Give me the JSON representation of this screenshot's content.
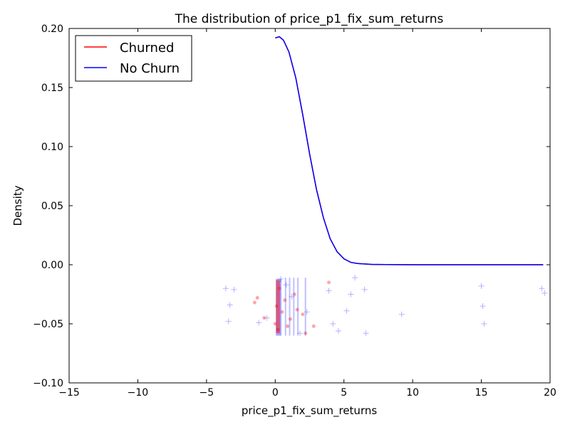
{
  "chart_data": {
    "type": "line",
    "title": "The distribution of price_p1_fix_sum_returns",
    "xlabel": "price_p1_fix_sum_returns",
    "ylabel": "Density",
    "xlim": [
      -15,
      20
    ],
    "ylim": [
      -0.1,
      0.2
    ],
    "xticks": [
      -15,
      -10,
      -5,
      0,
      5,
      10,
      15,
      20
    ],
    "xtick_labels": [
      "−15",
      "−10",
      "−5",
      "0",
      "5",
      "10",
      "15",
      "20"
    ],
    "yticks": [
      -0.1,
      -0.05,
      0.0,
      0.05,
      0.1,
      0.15,
      0.2
    ],
    "ytick_labels": [
      "−0.10",
      "−0.05",
      "0.00",
      "0.05",
      "0.10",
      "0.15",
      "0.20"
    ],
    "legend_position": "top-left",
    "grid": false,
    "series": [
      {
        "name": "Churned",
        "color": "#ff0000",
        "x": [
          0.0,
          0.3,
          0.6,
          1.0,
          1.5,
          2.0,
          2.5,
          3.0,
          3.5,
          4.0,
          4.5,
          5.0,
          5.5,
          6.0,
          7.0,
          8.0,
          10.0,
          12.0,
          15.0,
          17.0,
          19.5
        ],
        "y": [
          0.192,
          0.193,
          0.19,
          0.18,
          0.158,
          0.127,
          0.094,
          0.064,
          0.04,
          0.022,
          0.011,
          0.005,
          0.002,
          0.001,
          0.0003,
          0.0001,
          0.0,
          0.0,
          0.0,
          0.0,
          0.0
        ]
      },
      {
        "name": "No Churn",
        "color": "#0000ff",
        "x": [
          0.0,
          0.3,
          0.6,
          1.0,
          1.5,
          2.0,
          2.5,
          3.0,
          3.5,
          4.0,
          4.5,
          5.0,
          5.5,
          6.0,
          7.0,
          8.0,
          10.0,
          12.0,
          15.0,
          17.0,
          19.5
        ],
        "y": [
          0.192,
          0.193,
          0.19,
          0.18,
          0.158,
          0.127,
          0.094,
          0.064,
          0.04,
          0.022,
          0.011,
          0.005,
          0.002,
          0.001,
          0.0003,
          0.0001,
          0.0,
          0.0,
          0.0,
          0.0,
          0.0
        ]
      }
    ],
    "rug_points": {
      "churned": {
        "marker": "circle",
        "color": "#ff0000",
        "x": [
          -1.5,
          -1.3,
          -0.8,
          0.0,
          0.1,
          0.2,
          0.3,
          0.5,
          0.7,
          0.9,
          1.1,
          1.4,
          1.6,
          2.0,
          2.2,
          2.8,
          3.9
        ],
        "y": [
          -0.032,
          -0.028,
          -0.045,
          -0.05,
          -0.035,
          -0.055,
          -0.02,
          -0.04,
          -0.03,
          -0.052,
          -0.046,
          -0.025,
          -0.038,
          -0.042,
          -0.058,
          -0.052,
          -0.015
        ]
      },
      "no_churn": {
        "marker": "plus",
        "color": "#0000ff",
        "x": [
          -3.6,
          -3.4,
          -3.3,
          -3.0,
          -1.2,
          -0.6,
          0.4,
          0.8,
          1.2,
          1.8,
          2.3,
          3.9,
          4.2,
          4.6,
          5.2,
          5.5,
          5.8,
          6.5,
          6.6,
          9.2,
          15.0,
          15.1,
          15.2,
          19.4,
          19.6
        ],
        "y": [
          -0.02,
          -0.048,
          -0.034,
          -0.021,
          -0.049,
          -0.045,
          -0.012,
          -0.017,
          -0.027,
          -0.058,
          -0.04,
          -0.022,
          -0.05,
          -0.056,
          -0.039,
          -0.025,
          -0.011,
          -0.021,
          -0.058,
          -0.042,
          -0.018,
          -0.035,
          -0.05,
          -0.02,
          -0.024
        ]
      }
    }
  }
}
